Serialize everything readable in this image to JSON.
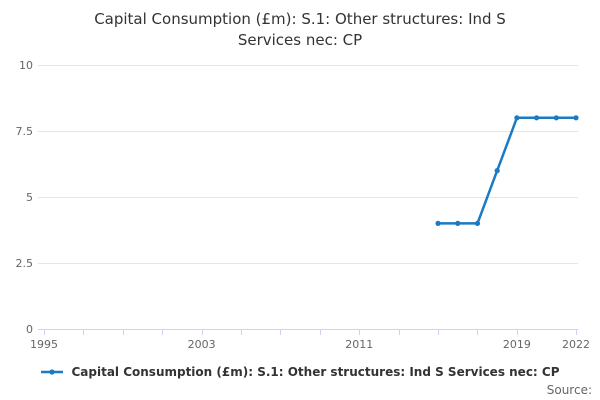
{
  "title": {
    "line1": "Capital Consumption (£m): S.1: Other structures: Ind S",
    "line2": "Services nec: CP",
    "full": "Capital Consumption (£m): S.1: Other structures: Ind S Services nec: CP"
  },
  "legend": {
    "label": "Capital Consumption (£m): S.1: Other structures: Ind S Services nec: CP"
  },
  "footer": {
    "source_label": "Source:"
  },
  "colors": {
    "line": "#1b7ac1",
    "grid": "#e6e6e6",
    "axis": "#ccd6eb",
    "axis_text": "#666666",
    "title_text": "#333333"
  },
  "chart_data": {
    "type": "line",
    "title": "Capital Consumption (£m): S.1: Other structures: Ind S Services nec: CP",
    "x": [
      2015,
      2016,
      2017,
      2018,
      2019,
      2020,
      2021,
      2022
    ],
    "series": [
      {
        "name": "Capital Consumption (£m): S.1: Other structures: Ind S Services nec: CP",
        "values": [
          4,
          4,
          4,
          6,
          8,
          8,
          8,
          8
        ]
      }
    ],
    "xlabel": "",
    "ylabel": "",
    "xlim": [
      1994.7,
      2022.1
    ],
    "ylim": [
      0,
      10
    ],
    "yticks": [
      0,
      2.5,
      5,
      7.5,
      10
    ],
    "ytick_labels": [
      "0",
      "2.5",
      "5",
      "7.5",
      "10"
    ],
    "xticks": [
      1995,
      1997,
      1999,
      2001,
      2003,
      2005,
      2007,
      2009,
      2011,
      2013,
      2015,
      2017,
      2019,
      2022
    ],
    "xtick_labels": {
      "1995": "1995",
      "2003": "2003",
      "2011": "2011",
      "2019": "2019",
      "2022": "2022"
    },
    "grid": true,
    "legend_position": "bottom"
  }
}
